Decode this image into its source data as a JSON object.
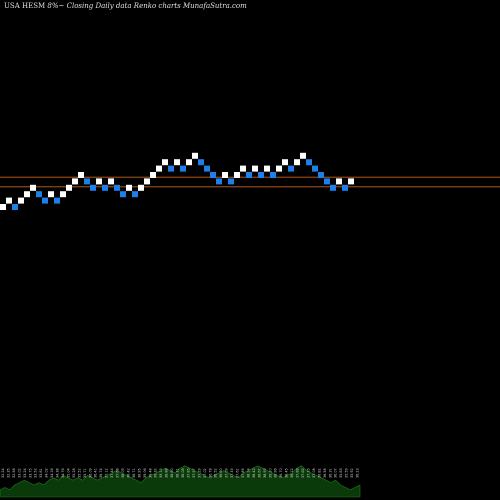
{
  "header": {
    "symbol": "USA HESM",
    "change": "8%",
    "change_suffix": "~",
    "subtitle": "Closing Daily data",
    "chart_type_label": "Renko",
    "source": "charts MunafaSutra.com"
  },
  "colors": {
    "background": "#000000",
    "up_brick": "#ffffff",
    "down_brick": "#1e7fe8",
    "reference_line": "#c8641e",
    "volume_fill": "#0a3a0a",
    "volume_stroke": "#1d7a1d",
    "volume_label": "#cfcfcf"
  },
  "chart_data": {
    "type": "renko",
    "bricks": [
      {
        "level": 0,
        "dir": "up"
      },
      {
        "level": 1,
        "dir": "up"
      },
      {
        "level": 0,
        "dir": "down"
      },
      {
        "level": 1,
        "dir": "up"
      },
      {
        "level": 2,
        "dir": "up"
      },
      {
        "level": 3,
        "dir": "up"
      },
      {
        "level": 2,
        "dir": "down"
      },
      {
        "level": 1,
        "dir": "down"
      },
      {
        "level": 2,
        "dir": "up"
      },
      {
        "level": 1,
        "dir": "down"
      },
      {
        "level": 2,
        "dir": "up"
      },
      {
        "level": 3,
        "dir": "up"
      },
      {
        "level": 4,
        "dir": "up"
      },
      {
        "level": 5,
        "dir": "up"
      },
      {
        "level": 4,
        "dir": "down"
      },
      {
        "level": 3,
        "dir": "down"
      },
      {
        "level": 4,
        "dir": "up"
      },
      {
        "level": 3,
        "dir": "down"
      },
      {
        "level": 4,
        "dir": "up"
      },
      {
        "level": 3,
        "dir": "down"
      },
      {
        "level": 2,
        "dir": "down"
      },
      {
        "level": 3,
        "dir": "up"
      },
      {
        "level": 2,
        "dir": "down"
      },
      {
        "level": 3,
        "dir": "up"
      },
      {
        "level": 4,
        "dir": "up"
      },
      {
        "level": 5,
        "dir": "up"
      },
      {
        "level": 6,
        "dir": "up"
      },
      {
        "level": 7,
        "dir": "up"
      },
      {
        "level": 6,
        "dir": "down"
      },
      {
        "level": 7,
        "dir": "up"
      },
      {
        "level": 6,
        "dir": "down"
      },
      {
        "level": 7,
        "dir": "up"
      },
      {
        "level": 8,
        "dir": "up"
      },
      {
        "level": 7,
        "dir": "down"
      },
      {
        "level": 6,
        "dir": "down"
      },
      {
        "level": 5,
        "dir": "down"
      },
      {
        "level": 4,
        "dir": "down"
      },
      {
        "level": 5,
        "dir": "up"
      },
      {
        "level": 4,
        "dir": "down"
      },
      {
        "level": 5,
        "dir": "up"
      },
      {
        "level": 6,
        "dir": "up"
      },
      {
        "level": 5,
        "dir": "down"
      },
      {
        "level": 6,
        "dir": "up"
      },
      {
        "level": 5,
        "dir": "down"
      },
      {
        "level": 6,
        "dir": "up"
      },
      {
        "level": 5,
        "dir": "down"
      },
      {
        "level": 6,
        "dir": "up"
      },
      {
        "level": 7,
        "dir": "up"
      },
      {
        "level": 6,
        "dir": "down"
      },
      {
        "level": 7,
        "dir": "up"
      },
      {
        "level": 8,
        "dir": "up"
      },
      {
        "level": 7,
        "dir": "down"
      },
      {
        "level": 6,
        "dir": "down"
      },
      {
        "level": 5,
        "dir": "down"
      },
      {
        "level": 4,
        "dir": "down"
      },
      {
        "level": 3,
        "dir": "down"
      },
      {
        "level": 4,
        "dir": "up"
      },
      {
        "level": 3,
        "dir": "down"
      },
      {
        "level": 4,
        "dir": "up"
      }
    ],
    "reference_lines": [
      {
        "level": 4.5
      },
      {
        "level": 3
      }
    ],
    "volume": [
      3,
      4,
      3,
      5,
      6,
      7,
      6,
      5,
      6,
      5,
      7,
      8,
      7,
      9,
      8,
      7,
      8,
      7,
      9,
      8,
      7,
      8,
      9,
      10,
      11,
      10,
      9,
      8,
      7,
      6,
      8,
      9,
      10,
      11,
      12,
      11,
      10,
      12,
      13,
      12,
      11,
      10,
      9,
      8,
      9,
      10,
      11,
      10,
      9,
      8,
      10,
      11,
      12,
      13,
      12,
      11,
      10,
      9,
      8,
      9,
      10,
      12,
      13,
      11,
      10,
      9,
      8,
      7,
      6,
      7,
      5,
      4,
      3,
      4,
      5
    ],
    "price_labels": [
      "32.24",
      "32.35",
      "32.58",
      "33.02",
      "33.24",
      "33.75",
      "33.52",
      "33.81",
      "34.02",
      "34.18",
      "34.38",
      "34.76",
      "35.04",
      "35.28",
      "35.52",
      "35.71",
      "36.09",
      "36.41",
      "36.74",
      "37.12",
      "37.44",
      "37.68",
      "38.09",
      "38.42",
      "38.71",
      "38.95",
      "39.06",
      "39.48",
      "39.32",
      "39.15",
      "38.88",
      "38.60",
      "38.31",
      "38.08",
      "37.85",
      "37.57",
      "37.29",
      "37.02",
      "36.78",
      "36.52",
      "36.80",
      "37.09",
      "37.33",
      "37.61",
      "37.89",
      "38.14",
      "38.42",
      "38.67",
      "38.93",
      "39.20",
      "38.96",
      "38.70",
      "38.45",
      "38.12",
      "37.88",
      "37.62",
      "37.35",
      "37.08",
      "36.82",
      "36.58",
      "36.31",
      "36.07",
      "35.83",
      "35.59",
      "35.92",
      "36.23"
    ]
  }
}
